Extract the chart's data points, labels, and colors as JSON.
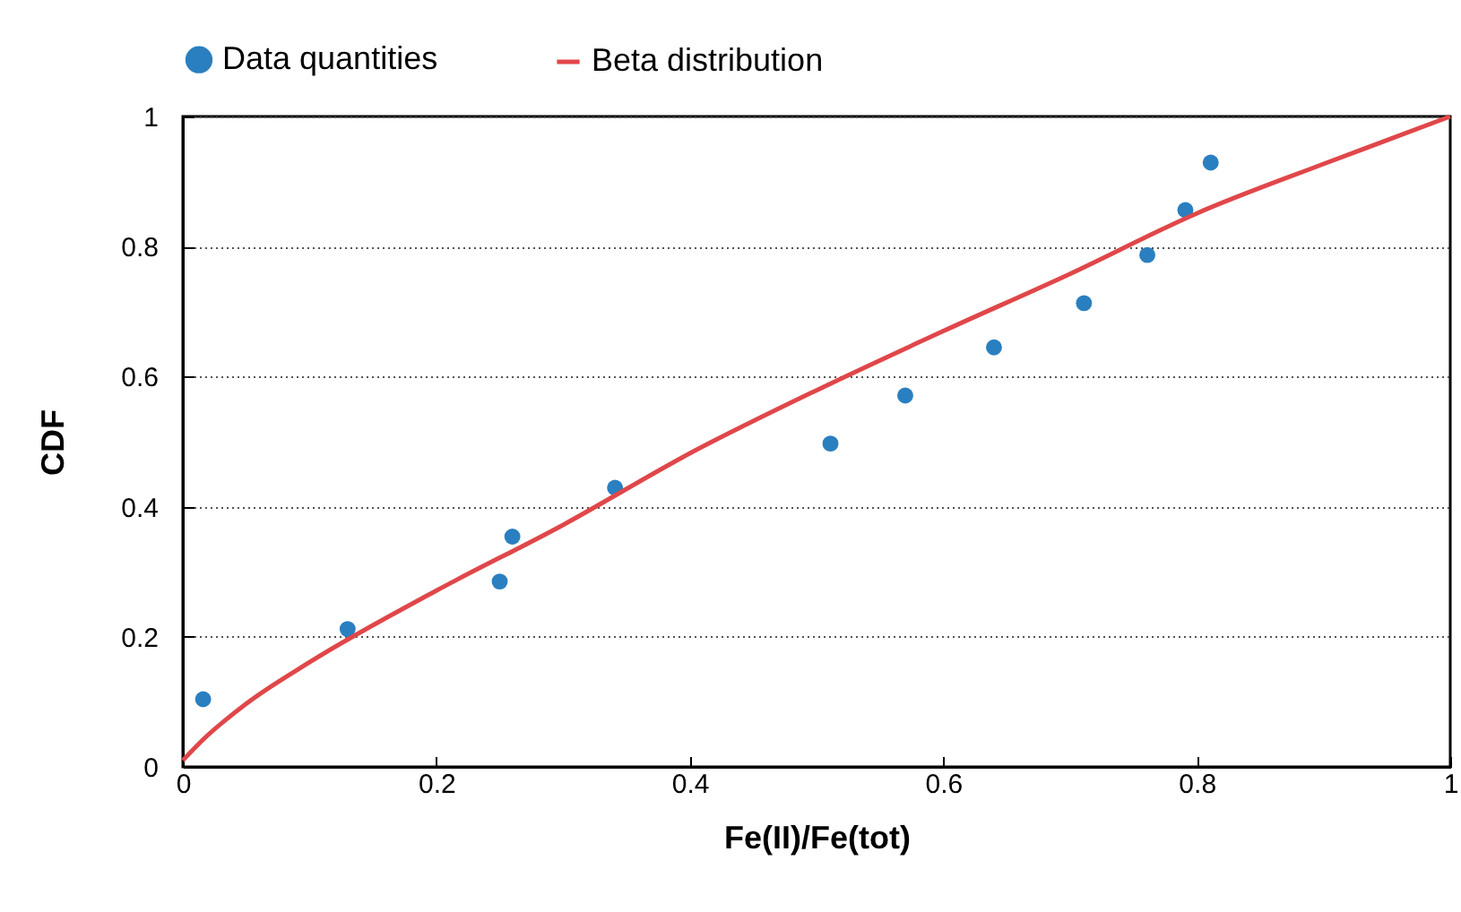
{
  "chart_data": {
    "type": "scatter",
    "xlabel": "Fe(II)/Fe(tot)",
    "ylabel": "CDF",
    "xlim": [
      0,
      1
    ],
    "ylim": [
      0,
      1
    ],
    "xticks": [
      0,
      0.2,
      0.4,
      0.6,
      0.8,
      1
    ],
    "yticks": [
      0,
      0.2,
      0.4,
      0.6,
      0.8,
      1
    ],
    "grid": "y",
    "legend": "top",
    "series": [
      {
        "name": "Data quantities",
        "marker": "circle",
        "color": "#2a7fc0",
        "x": [
          0.016,
          0.13,
          0.25,
          0.26,
          0.341,
          0.511,
          0.57,
          0.64,
          0.711,
          0.761,
          0.791,
          0.811
        ],
        "values": [
          0.104,
          0.212,
          0.285,
          0.354,
          0.429,
          0.497,
          0.571,
          0.645,
          0.713,
          0.787,
          0.856,
          0.929
        ]
      },
      {
        "name": "Beta distribution",
        "type": "line",
        "line_style": "solid",
        "color": "#e0474a",
        "x": [
          0,
          0.016,
          0.05,
          0.1,
          0.2,
          0.3,
          0.4,
          0.5,
          0.6,
          0.7,
          0.8,
          0.9,
          1
        ],
        "values": [
          0.01,
          0.042,
          0.097,
          0.161,
          0.271,
          0.372,
          0.482,
          0.579,
          0.67,
          0.758,
          0.851,
          0.927,
          1
        ]
      }
    ]
  }
}
